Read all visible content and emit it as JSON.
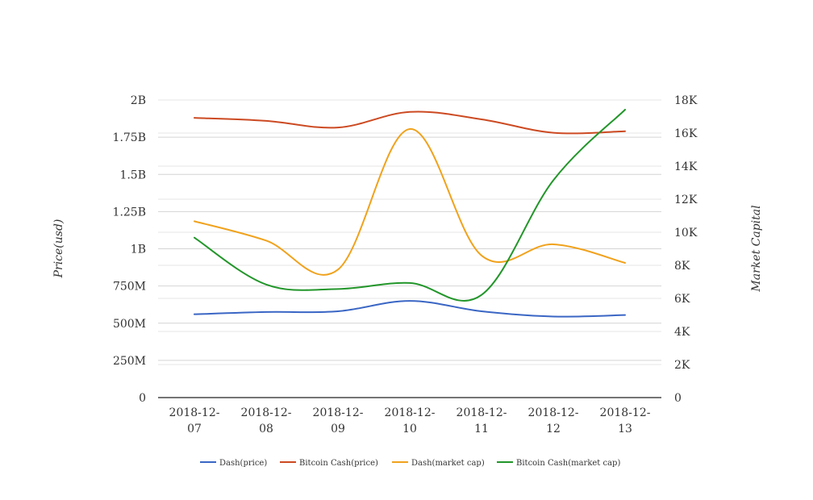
{
  "chart_data": {
    "type": "line",
    "x": [
      "2018-12-07",
      "2018-12-08",
      "2018-12-09",
      "2018-12-10",
      "2018-12-11",
      "2018-12-12",
      "2018-12-13"
    ],
    "x_tick_labels": [
      [
        "2018-12-",
        "07"
      ],
      [
        "2018-12-",
        "08"
      ],
      [
        "2018-12-",
        "09"
      ],
      [
        "2018-12-",
        "10"
      ],
      [
        "2018-12-",
        "11"
      ],
      [
        "2018-12-",
        "12"
      ],
      [
        "2018-12-",
        "13"
      ]
    ],
    "ylabel_left": "Price(usd)",
    "ylabel_right": "Market Capital",
    "ylim_left": [
      0,
      2000000000
    ],
    "ylim_right": [
      0,
      18000
    ],
    "yticks_left": [
      {
        "value": 0,
        "label": "0"
      },
      {
        "value": 250000000,
        "label": "250M"
      },
      {
        "value": 500000000,
        "label": "500M"
      },
      {
        "value": 750000000,
        "label": "750M"
      },
      {
        "value": 1000000000,
        "label": "1B"
      },
      {
        "value": 1250000000,
        "label": "1.25B"
      },
      {
        "value": 1500000000,
        "label": "1.5B"
      },
      {
        "value": 1750000000,
        "label": "1.75B"
      },
      {
        "value": 2000000000,
        "label": "2B"
      }
    ],
    "yticks_right": [
      {
        "value": 0,
        "label": "0"
      },
      {
        "value": 2000,
        "label": "2K"
      },
      {
        "value": 4000,
        "label": "4K"
      },
      {
        "value": 6000,
        "label": "6K"
      },
      {
        "value": 8000,
        "label": "8K"
      },
      {
        "value": 10000,
        "label": "10K"
      },
      {
        "value": 12000,
        "label": "12K"
      },
      {
        "value": 14000,
        "label": "14K"
      },
      {
        "value": 16000,
        "label": "16K"
      },
      {
        "value": 18000,
        "label": "18K"
      }
    ],
    "grid": true,
    "legend_position": "bottom",
    "series": [
      {
        "name": "Dash(price)",
        "color": "#3a66c4",
        "axis": "left",
        "values": [
          560000000,
          575000000,
          580000000,
          650000000,
          580000000,
          545000000,
          555000000
        ]
      },
      {
        "name": "Bitcoin Cash(price)",
        "color": "#cc4a22",
        "axis": "left",
        "values": [
          1880000000,
          1860000000,
          1815000000,
          1920000000,
          1870000000,
          1780000000,
          1790000000
        ]
      },
      {
        "name": "Dash(market cap)",
        "color": "#f0a21c",
        "axis": "left",
        "values": [
          1185000000,
          1055000000,
          860000000,
          1805000000,
          955000000,
          1030000000,
          905000000
        ]
      },
      {
        "name": "Bitcoin Cash(market cap)",
        "color": "#22962a",
        "axis": "left",
        "values": [
          1075000000,
          760000000,
          730000000,
          770000000,
          690000000,
          1460000000,
          1935000000
        ]
      }
    ]
  }
}
